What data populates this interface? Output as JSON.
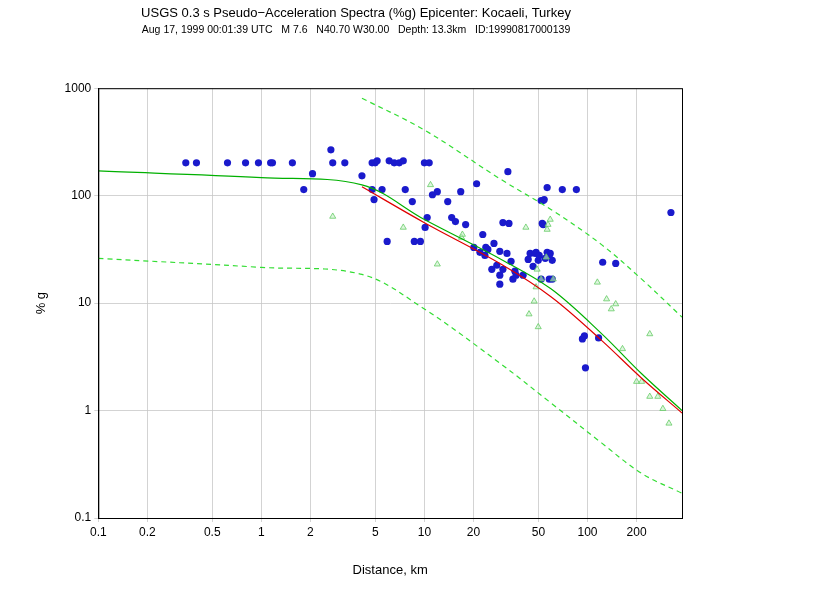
{
  "chart_data": {
    "type": "scatter",
    "title": "USGS 0.3 s Pseudo−Acceleration Spectra (%g) Epicenter: Kocaeli, Turkey",
    "subtitle": "Aug 17, 1999 00:01:39 UTC   M 7.6   N40.70 W30.00   Depth: 13.3km   ID:19990817000139",
    "x_label": "Distance, km",
    "y_label": "% g",
    "log": true,
    "grid": true,
    "xlim": [
      0.1,
      380
    ],
    "ylim": [
      0.1,
      1000
    ],
    "xticks": [
      0.1,
      0.2,
      0.5,
      1,
      2,
      5,
      10,
      20,
      50,
      100,
      200
    ],
    "yticks": [
      0.1,
      1,
      10,
      100,
      1000
    ],
    "series": [
      {
        "type": "line",
        "color": "#33dd33",
        "line_style": "dashed",
        "marker": "none",
        "x": [
          4.14,
          10,
          29.6,
          60,
          122,
          215,
          380
        ],
        "values": [
          807,
          408,
          141,
          74,
          35,
          16.7,
          7.4
        ]
      },
      {
        "type": "line",
        "color": "#33dd33",
        "line_style": "dashed",
        "marker": "none",
        "x": [
          0.1,
          1,
          4.14,
          10,
          29.6,
          60,
          122,
          215,
          380
        ],
        "values": [
          26.1,
          21.5,
          18.5,
          8.8,
          2.7,
          1.17,
          0.5,
          0.26,
          0.17
        ]
      },
      {
        "type": "line",
        "color": "#00b000",
        "line_style": "solid",
        "marker": "none",
        "x": [
          0.1,
          1,
          4.14,
          10,
          29.6,
          60,
          122,
          215,
          380
        ],
        "values": [
          170,
          147,
          126,
          60,
          25.5,
          13.5,
          5.2,
          2.2,
          1.0
        ]
      },
      {
        "type": "line",
        "color": "#e00000",
        "line_style": "solid",
        "marker": "none",
        "x": [
          4.14,
          10,
          29.6,
          60,
          122,
          215,
          380
        ],
        "values": [
          121,
          56,
          23,
          11.4,
          4.5,
          2.0,
          0.95
        ]
      },
      {
        "type": "scatter",
        "color": "#66cc66",
        "marker": "triangle",
        "x": [
          2.74,
          7.42,
          10.9,
          12.0,
          16.9,
          17.1,
          41.9,
          43.8,
          47.1,
          48.4,
          49.1,
          49.9,
          52.0,
          55.9,
          56.6,
          57.3,
          59.1,
          61.7,
          115,
          131,
          140,
          149,
          164,
          200,
          215,
          241,
          241,
          270,
          290,
          316
        ],
        "values": [
          64,
          50.6,
          126,
          23.0,
          40.8,
          43.5,
          50.6,
          7.9,
          10.4,
          14.1,
          20.6,
          6.0,
          16.7,
          26.7,
          48.4,
          53.8,
          60,
          16.7,
          15.6,
          10.9,
          8.8,
          9.8,
          3.75,
          1.86,
          1.86,
          5.16,
          1.35,
          1.35,
          1.04,
          0.76
        ]
      },
      {
        "type": "scatter",
        "color": "#1a1acc",
        "marker": "circle",
        "x": [
          0.344,
          0.4,
          0.62,
          0.8,
          0.96,
          1.14,
          1.17,
          1.55,
          2.06,
          1.82,
          2.67,
          2.74,
          3.25,
          4.14,
          4.78,
          4.78,
          4.99,
          5.13,
          4.91,
          5.5,
          6.08,
          6.53,
          7.01,
          7.42,
          7.63,
          10,
          10.7,
          5.91,
          8.67,
          9.45,
          10.4,
          10.1,
          8.43,
          11.2,
          12.0,
          13.9,
          16.7,
          14.7,
          15.5,
          17.9,
          20.9,
          22.8,
          20.1,
          21.9,
          23.8,
          24.5,
          26.7,
          23.5,
          25.9,
          29.0,
          27.8,
          29.0,
          32.1,
          32.5,
          30.3,
          33.0,
          34.0,
          36.5,
          35.9,
          40.3,
          34.9,
          29.0,
          30.3,
          43.3,
          44.5,
          46.4,
          48.4,
          47.8,
          49.9,
          52.0,
          52.8,
          53.5,
          56.6,
          59.1,
          58.3,
          60.8,
          50.6,
          58.3,
          60.8,
          52.0,
          53.5,
          54.3,
          56.6,
          70.1,
          55.1,
          85.5,
          93.1,
          95.8,
          97.2,
          117,
          124,
          149,
          325
        ],
        "values": [
          202,
          202,
          202,
          202,
          202,
          202,
          202,
          202,
          160,
          114,
          267,
          202,
          202,
          153,
          114,
          202,
          202,
          211,
          92,
          114,
          211,
          202,
          202,
          211,
          114,
          202,
          202,
          37.5,
          37.5,
          37.5,
          62.5,
          50.6,
          88,
          102,
          109,
          88,
          109,
          62.5,
          57.4,
          53.8,
          129,
          43.5,
          33.0,
          29.7,
          33.0,
          31.6,
          35.9,
          27.8,
          20.6,
          30.3,
          22.5,
          18.2,
          29.0,
          167,
          56.2,
          55.1,
          24.5,
          18.2,
          19.8,
          18.2,
          16.7,
          15.0,
          20.6,
          25.5,
          29.0,
          22.0,
          29.7,
          29.0,
          25.0,
          90,
          55.1,
          53.8,
          29.7,
          29.0,
          27.8,
          25.0,
          27.8,
          16.7,
          16.7,
          16.7,
          90,
          92,
          119,
          114,
          26.1,
          114,
          4.64,
          4.95,
          2.5,
          4.74,
          24.0,
          23.4,
          69.7
        ]
      }
    ]
  }
}
